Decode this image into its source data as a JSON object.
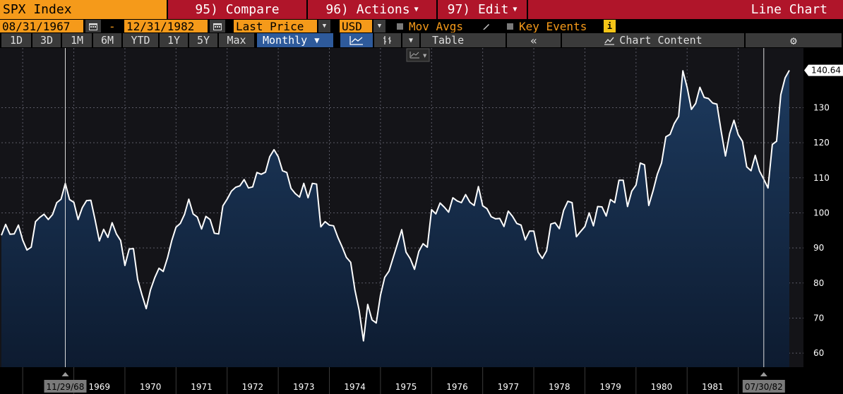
{
  "toolbar": {
    "ticker": "SPX Index",
    "compare": "95) Compare",
    "actions": "96) Actions",
    "edit": "97) Edit",
    "chart_type": "Line Chart"
  },
  "controls": {
    "start_date": "08/31/1967",
    "dash": "-",
    "end_date": "12/31/1982",
    "field": "Last Price",
    "currency": "USD",
    "mov_avgs": "Mov Avgs",
    "key_events": "Key Events"
  },
  "ranges": {
    "items": [
      "1D",
      "3D",
      "1M",
      "6M",
      "YTD",
      "1Y",
      "5Y",
      "Max"
    ],
    "frequency": "Monthly",
    "table": "Table",
    "collapse": "«",
    "chart_content": "Chart Content"
  },
  "colors": {
    "orange": "#f59a1a",
    "red": "#b0152a",
    "line": "#ffffff",
    "fill_top": "#1d3a5e",
    "fill_bottom": "#0d1b30",
    "background": "#141418"
  },
  "chart_data": {
    "type": "area",
    "series": [
      {
        "values": [
          93.6,
          96.7,
          93.9,
          94.0,
          96.5,
          92.2,
          89.4,
          90.2,
          97.5,
          98.7,
          99.6,
          98.1,
          99.5,
          102.9,
          103.9,
          108.4,
          103.8,
          103.0,
          98.1,
          101.5,
          103.5,
          103.6,
          98.0,
          92.0,
          95.3,
          93.0,
          97.2,
          94.0,
          92.1,
          85.0,
          89.7,
          89.8,
          81.0,
          76.6,
          72.7,
          78.0,
          81.5,
          84.2,
          83.3,
          87.2,
          92.1,
          95.9,
          97.0,
          99.6,
          103.9,
          99.7,
          98.8,
          95.4,
          99.0,
          98.1,
          94.2,
          94.0,
          102.0,
          103.9,
          106.2,
          107.3,
          107.7,
          109.5,
          107.1,
          107.4,
          111.5,
          111.0,
          111.6,
          116.0,
          118.0,
          116.0,
          112.0,
          111.5,
          107.0,
          105.5,
          104.5,
          108.4,
          104.3,
          108.4,
          108.2,
          96.0,
          97.5,
          96.5,
          96.3,
          93.0,
          90.3,
          87.3,
          85.9,
          78.0,
          72.2,
          63.5,
          73.9,
          69.5,
          68.6,
          76.5,
          81.6,
          83.4,
          87.3,
          91.2,
          95.2,
          88.8,
          86.9,
          83.9,
          89.0,
          91.2,
          90.2,
          100.9,
          99.7,
          102.8,
          101.6,
          100.2,
          104.3,
          103.4,
          102.9,
          105.2,
          103.0,
          102.1,
          107.5,
          102.0,
          101.2,
          98.9,
          98.3,
          98.4,
          96.1,
          100.5,
          99.0,
          97.0,
          96.5,
          92.3,
          94.8,
          94.8,
          88.8,
          87.0,
          89.2,
          96.8,
          97.2,
          95.5,
          100.7,
          103.3,
          102.9,
          93.2,
          94.7,
          96.1,
          100.0,
          96.3,
          101.8,
          101.7,
          99.1,
          103.8,
          102.9,
          109.3,
          109.3,
          101.8,
          106.2,
          107.9,
          114.2,
          113.7,
          102.1,
          106.3,
          111.0,
          114.2,
          121.7,
          122.4,
          125.5,
          127.5,
          140.5,
          135.8,
          129.5,
          131.2,
          135.8,
          132.9,
          132.6,
          131.3,
          131.0,
          123.2,
          116.2,
          122.6,
          126.4,
          122.3,
          120.4,
          113.1,
          112.0,
          116.4,
          111.9,
          109.6,
          107.1,
          119.5,
          120.4,
          133.7,
          138.5,
          140.64
        ]
      }
    ],
    "x_range": [
      "1967-08",
      "1982-12"
    ],
    "x_tick_labels": [
      "1969",
      "1970",
      "1971",
      "1972",
      "1973",
      "1974",
      "1975",
      "1976",
      "1977",
      "1978",
      "1979",
      "1980",
      "1981"
    ],
    "y_ticks": [
      60,
      70,
      80,
      90,
      100,
      110,
      120,
      130
    ],
    "ylim": [
      56,
      147
    ],
    "last_value_label": "140.64",
    "crosshair_left_label": "11/29/68",
    "crosshair_right_label": "07/30/82",
    "grid": true
  }
}
